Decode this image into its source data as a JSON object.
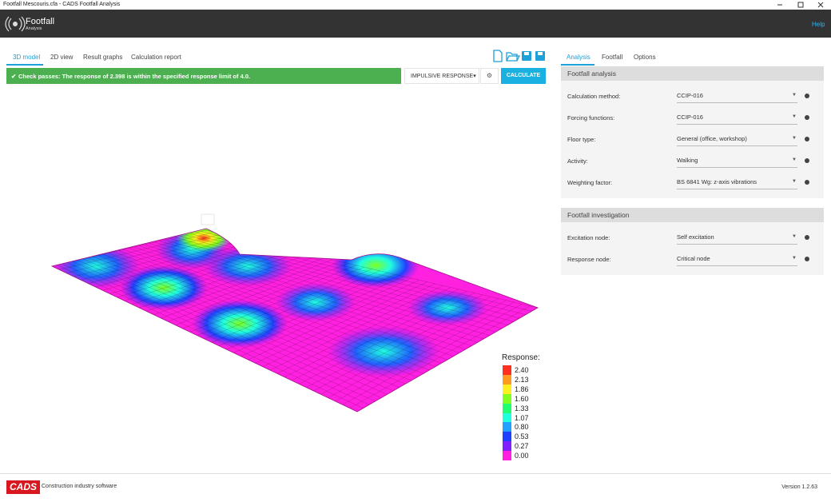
{
  "window": {
    "title": "Footfall Mescouris.cfa - CADS Footfall Analysis"
  },
  "header": {
    "app_name": "Footfall",
    "app_subtitle": "Analysis",
    "help": "Help"
  },
  "left_tabs": [
    "3D model",
    "2D view",
    "Result graphs",
    "Calculation report"
  ],
  "status": "Check passes: The response of 2.398 is within the specified response limit of 4.0.",
  "response_dropdown": "IMPULSIVE RESPONSE",
  "calculate_button": "CALCULATE",
  "legend": {
    "title": "Response:",
    "items": [
      {
        "label": "2.40",
        "color": "#ff3020"
      },
      {
        "label": "2.13",
        "color": "#ff9a20"
      },
      {
        "label": "1.86",
        "color": "#ffee20"
      },
      {
        "label": "1.60",
        "color": "#80ff20"
      },
      {
        "label": "1.33",
        "color": "#20ff70"
      },
      {
        "label": "1.07",
        "color": "#20ffe0"
      },
      {
        "label": "0.80",
        "color": "#20a0ff"
      },
      {
        "label": "0.53",
        "color": "#2040ff"
      },
      {
        "label": "0.27",
        "color": "#8020ff"
      },
      {
        "label": "0.00",
        "color": "#ff20e0"
      }
    ]
  },
  "right_tabs": [
    "Analysis",
    "Footfall",
    "Options"
  ],
  "sections": [
    {
      "title": "Footfall analysis",
      "fields": [
        {
          "label": "Calculation method:",
          "value": "CCIP-016"
        },
        {
          "label": "Forcing functions:",
          "value": "CCIP-016"
        },
        {
          "label": "Floor type:",
          "value": "General (office, workshop)"
        },
        {
          "label": "Activity:",
          "value": "Walking"
        },
        {
          "label": "Weighting factor:",
          "value": "BS 6841 Wg: z-axis vibrations"
        }
      ]
    },
    {
      "title": "Footfall investigation",
      "fields": [
        {
          "label": "Excitation node:",
          "value": "Self excitation"
        },
        {
          "label": "Response node:",
          "value": "Critical node"
        }
      ]
    }
  ],
  "footer": {
    "logo": "CADS",
    "tagline": "Construction industry software",
    "version": "Version 1.2.63"
  }
}
